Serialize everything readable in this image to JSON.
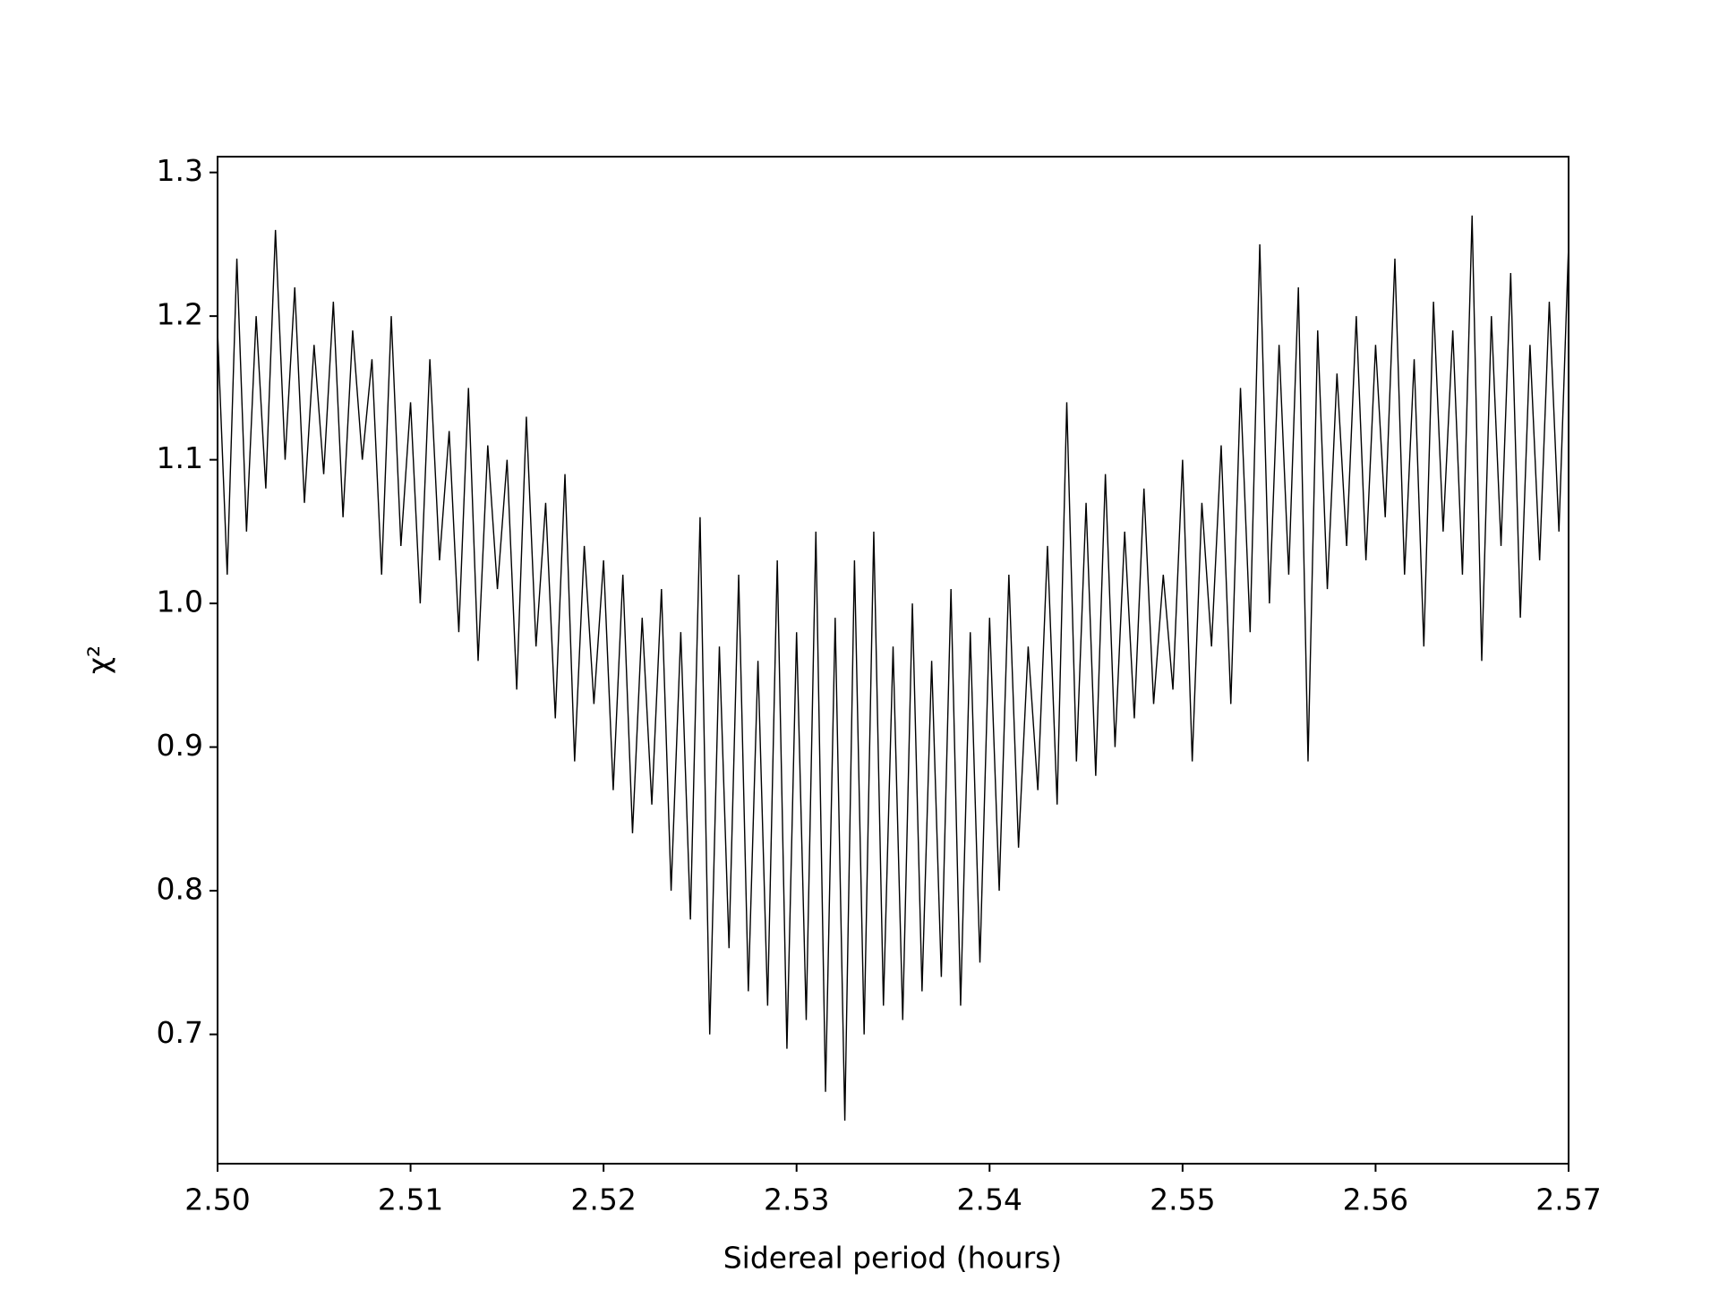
{
  "chart_data": {
    "type": "line",
    "x_label": "Sidereal period (hours)",
    "y_label": "χ²",
    "color": "#000000",
    "xlim": [
      2.5,
      2.57
    ],
    "ylim": [
      0.61,
      1.311
    ],
    "xticks": [
      {
        "value": 2.5,
        "label": "2.50"
      },
      2.51,
      2.52,
      2.53,
      2.54,
      2.55,
      2.56,
      2.57
    ],
    "yticks": [
      0.7,
      0.8,
      0.9,
      {
        "value": 1.0,
        "label": "1.0"
      },
      1.1,
      1.2,
      1.3
    ],
    "x": [
      2.5,
      2.5005,
      2.501,
      2.5015,
      2.502,
      2.5025,
      2.503,
      2.5035,
      2.504,
      2.5045,
      2.505,
      2.5055,
      2.506,
      2.5065,
      2.507,
      2.5075,
      2.508,
      2.5085,
      2.509,
      2.5095,
      2.51,
      2.5105,
      2.511,
      2.5115,
      2.512,
      2.5125,
      2.513,
      2.5135,
      2.514,
      2.5145,
      2.515,
      2.5155,
      2.516,
      2.5165,
      2.517,
      2.5175,
      2.518,
      2.5185,
      2.519,
      2.5195,
      2.52,
      2.5205,
      2.521,
      2.5215,
      2.522,
      2.5225,
      2.523,
      2.5235,
      2.524,
      2.5245,
      2.525,
      2.5255,
      2.526,
      2.5265,
      2.527,
      2.5275,
      2.528,
      2.5285,
      2.529,
      2.5295,
      2.53,
      2.5305,
      2.531,
      2.5315,
      2.532,
      2.5325,
      2.533,
      2.5335,
      2.534,
      2.5345,
      2.535,
      2.5355,
      2.536,
      2.5365,
      2.537,
      2.5375,
      2.538,
      2.5385,
      2.539,
      2.5395,
      2.54,
      2.5405,
      2.541,
      2.5415,
      2.542,
      2.5425,
      2.543,
      2.5435,
      2.544,
      2.5445,
      2.545,
      2.5455,
      2.546,
      2.5465,
      2.547,
      2.5475,
      2.548,
      2.5485,
      2.549,
      2.5495,
      2.55,
      2.5505,
      2.551,
      2.5515,
      2.552,
      2.5525,
      2.553,
      2.5535,
      2.554,
      2.5545,
      2.555,
      2.5555,
      2.556,
      2.5565,
      2.557,
      2.5575,
      2.558,
      2.5585,
      2.559,
      2.5595,
      2.56,
      2.5605,
      2.561,
      2.5615,
      2.562,
      2.5625,
      2.563,
      2.5635,
      2.564,
      2.5645,
      2.565,
      2.5655,
      2.566,
      2.5665,
      2.567,
      2.5675,
      2.568,
      2.5685,
      2.569,
      2.5695,
      2.57
    ],
    "values": [
      1.19,
      1.02,
      1.24,
      1.05,
      1.2,
      1.08,
      1.26,
      1.1,
      1.22,
      1.07,
      1.18,
      1.09,
      1.21,
      1.06,
      1.19,
      1.1,
      1.17,
      1.02,
      1.2,
      1.04,
      1.14,
      1.0,
      1.17,
      1.03,
      1.12,
      0.98,
      1.15,
      0.96,
      1.11,
      1.01,
      1.1,
      0.94,
      1.13,
      0.97,
      1.07,
      0.92,
      1.09,
      0.89,
      1.04,
      0.93,
      1.03,
      0.87,
      1.02,
      0.84,
      0.99,
      0.86,
      1.01,
      0.8,
      0.98,
      0.78,
      1.06,
      0.7,
      0.97,
      0.76,
      1.02,
      0.73,
      0.96,
      0.72,
      1.03,
      0.69,
      0.98,
      0.71,
      1.05,
      0.66,
      0.99,
      0.64,
      1.03,
      0.7,
      1.05,
      0.72,
      0.97,
      0.71,
      1.0,
      0.73,
      0.96,
      0.74,
      1.01,
      0.72,
      0.98,
      0.75,
      0.99,
      0.8,
      1.02,
      0.83,
      0.97,
      0.87,
      1.04,
      0.86,
      1.14,
      0.89,
      1.07,
      0.88,
      1.09,
      0.9,
      1.05,
      0.92,
      1.08,
      0.93,
      1.02,
      0.94,
      1.1,
      0.89,
      1.07,
      0.97,
      1.11,
      0.93,
      1.15,
      0.98,
      1.25,
      1.0,
      1.18,
      1.02,
      1.22,
      0.89,
      1.19,
      1.01,
      1.16,
      1.04,
      1.2,
      1.03,
      1.18,
      1.06,
      1.24,
      1.02,
      1.17,
      0.97,
      1.21,
      1.05,
      1.19,
      1.02,
      1.27,
      0.96,
      1.2,
      1.04,
      1.23,
      0.99,
      1.18,
      1.03,
      1.21,
      1.05,
      1.25
    ]
  }
}
